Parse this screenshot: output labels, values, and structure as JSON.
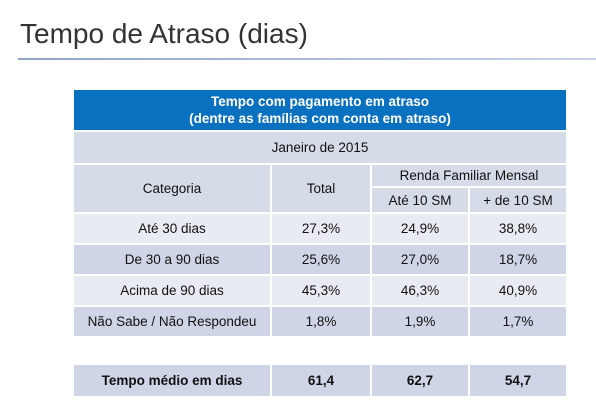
{
  "title": "Tempo de Atraso (dias)",
  "table": {
    "caption": [
      "Tempo com pagamento em atraso",
      "(dentre as famílias com conta em atraso)"
    ],
    "period": "Janeiro de 2015",
    "header": {
      "category": "Categoria",
      "total": "Total",
      "group": "Renda Familiar Mensal",
      "sub": [
        "Até 10 SM",
        "+ de 10 SM"
      ]
    },
    "rows": [
      [
        "Até 30 dias",
        "27,3%",
        "24,9%",
        "38,8%"
      ],
      [
        "De 30 a 90 dias",
        "25,6%",
        "27,0%",
        "18,7%"
      ],
      [
        "Acima de 90 dias",
        "45,3%",
        "46,3%",
        "40,9%"
      ],
      [
        "Não Sabe / Não Respondeu",
        "1,8%",
        "1,9%",
        "1,7%"
      ]
    ],
    "summary": [
      "Tempo médio em dias",
      "61,4",
      "62,7",
      "54,7"
    ]
  }
}
